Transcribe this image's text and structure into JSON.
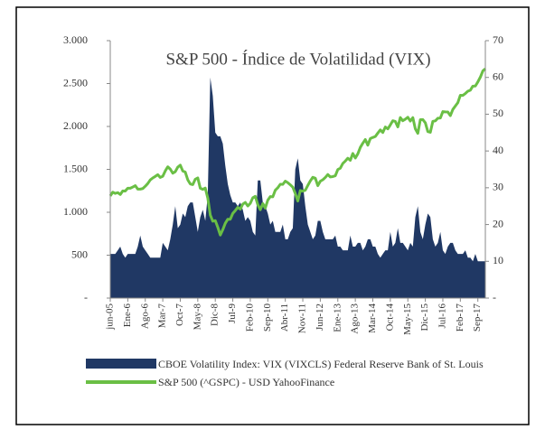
{
  "chart_data": {
    "type": "area-line",
    "title": "S&P 500 - Índice de Volatilidad (VIX)",
    "categories": [
      "jun-05",
      null,
      null,
      null,
      null,
      null,
      null,
      "Ene-6",
      null,
      null,
      null,
      null,
      null,
      null,
      "Ago-6",
      null,
      null,
      null,
      null,
      null,
      null,
      "Mar-7",
      null,
      null,
      null,
      null,
      null,
      null,
      "Oct-7",
      null,
      null,
      null,
      null,
      null,
      null,
      "May-8",
      null,
      null,
      null,
      null,
      null,
      null,
      "Dic-8",
      null,
      null,
      null,
      null,
      null,
      null,
      "Jul-9",
      null,
      null,
      null,
      null,
      null,
      null,
      "Feb-10",
      null,
      null,
      null,
      null,
      null,
      null,
      "Sep-10",
      null,
      null,
      null,
      null,
      null,
      null,
      "Abr-11",
      null,
      null,
      null,
      null,
      null,
      null,
      "Nov-11",
      null,
      null,
      null,
      null,
      null,
      null,
      "Jun-12",
      null,
      null,
      null,
      null,
      null,
      null,
      "Ene-13",
      null,
      null,
      null,
      null,
      null,
      null,
      "Ago-13",
      null,
      null,
      null,
      null,
      null,
      null,
      "Mar-14",
      null,
      null,
      null,
      null,
      null,
      null,
      "Oct-14",
      null,
      null,
      null,
      null,
      null,
      null,
      "May-15",
      null,
      null,
      null,
      null,
      null,
      null,
      "Dic-15",
      null,
      null,
      null,
      null,
      null,
      null,
      "Jul-16",
      null,
      null,
      null,
      null,
      null,
      null,
      "Feb-17",
      null,
      null,
      null,
      null,
      null,
      null,
      "Sep-17",
      null,
      null,
      null
    ],
    "series": [
      {
        "name": "CBOE Volatility Index: VIX (VIXCLS) Federal Reserve Bank of St. Louis",
        "color": "#203864",
        "kind": "area",
        "axis": "y2",
        "values": [
          12,
          12,
          12,
          13,
          14,
          12,
          11,
          12,
          12,
          12,
          12,
          14,
          17,
          14,
          13,
          12,
          11,
          11,
          11,
          11,
          11,
          15,
          14,
          13,
          16,
          20,
          25,
          19,
          20,
          23,
          22,
          25,
          26,
          26,
          22,
          18,
          22,
          24,
          21,
          28,
          60,
          55,
          45,
          44,
          44,
          42,
          36,
          31,
          28,
          26,
          26,
          25,
          26,
          24,
          21,
          22,
          21,
          18,
          17,
          32,
          32,
          26,
          25,
          23,
          20,
          21,
          18,
          18,
          18,
          20,
          16,
          16,
          18,
          19,
          35,
          38,
          32,
          31,
          25,
          20,
          18,
          16,
          17,
          21,
          21,
          18,
          16,
          16,
          16,
          16,
          17,
          14,
          14,
          13,
          13,
          13,
          17,
          14,
          14,
          15,
          15,
          13,
          14,
          16,
          16,
          14,
          14,
          12,
          11,
          12,
          13,
          13,
          18,
          14,
          15,
          19,
          15,
          15,
          14,
          13,
          15,
          14,
          22,
          25,
          18,
          16,
          20,
          23,
          22,
          16,
          14,
          15,
          18,
          13,
          12,
          14,
          15,
          15,
          13,
          12,
          12,
          12,
          13,
          11,
          11,
          10,
          12,
          10,
          10,
          10,
          10
        ]
      },
      {
        "name": "S&P 500 (^GSPC) - USD YahooFinance",
        "color": "#6abf45",
        "kind": "line",
        "values": [
          1191,
          1234,
          1220,
          1229,
          1207,
          1249,
          1248,
          1280,
          1280,
          1294,
          1310,
          1270,
          1270,
          1276,
          1303,
          1335,
          1377,
          1400,
          1418,
          1438,
          1406,
          1420,
          1482,
          1530,
          1503,
          1455,
          1473,
          1526,
          1549,
          1481,
          1468,
          1378,
          1330,
          1322,
          1385,
          1400,
          1280,
          1267,
          1282,
          1166,
          968,
          896,
          903,
          825,
          735,
          797,
          872,
          919,
          919,
          987,
          1020,
          1057,
          1036,
          1095,
          1115,
          1073,
          1104,
          1169,
          1186,
          1089,
          1030,
          1101,
          1049,
          1141,
          1183,
          1180,
          1257,
          1286,
          1327,
          1325,
          1363,
          1345,
          1320,
          1292,
          1218,
          1131,
          1253,
          1246,
          1257,
          1312,
          1365,
          1408,
          1397,
          1310,
          1362,
          1379,
          1406,
          1440,
          1412,
          1416,
          1426,
          1498,
          1514,
          1569,
          1597,
          1630,
          1606,
          1685,
          1632,
          1681,
          1756,
          1805,
          1848,
          1782,
          1859,
          1872,
          1883,
          1923,
          1960,
          1930,
          1994,
          1972,
          2018,
          2067,
          2058,
          1995,
          2104,
          2067,
          2085,
          2107,
          2063,
          2103,
          1972,
          1920,
          2079,
          2080,
          2043,
          1940,
          1932,
          2059,
          2065,
          2096,
          2098,
          2173,
          2170,
          2168,
          2126,
          2198,
          2238,
          2278,
          2363,
          2362,
          2384,
          2411,
          2423,
          2470,
          2471,
          2519,
          2575,
          2647,
          2673
        ]
      }
    ],
    "ylim": [
      0,
      3000
    ],
    "yticks": [
      {
        "value": 0,
        "label": "-"
      },
      500,
      {
        "value": 1000,
        "label": "1.000"
      },
      {
        "value": 1500,
        "label": "1.500"
      },
      {
        "value": 2000,
        "label": "2.000"
      },
      {
        "value": 2500,
        "label": "2.500"
      },
      {
        "value": 3000,
        "label": "3.000"
      }
    ],
    "y2lim": [
      0,
      70
    ],
    "y2ticks": [
      {
        "value": 0,
        "label": "-"
      },
      10,
      20,
      30,
      40,
      50,
      60,
      70
    ]
  }
}
